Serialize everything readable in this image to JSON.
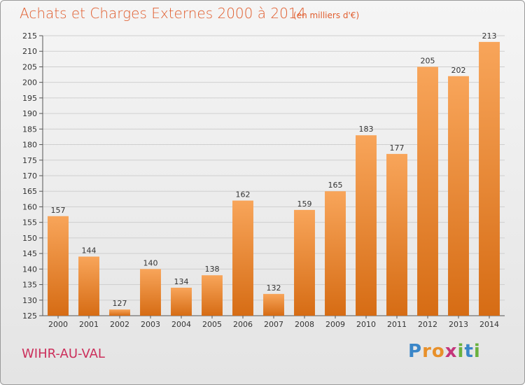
{
  "header": {
    "title": "Achats et Charges Externes 2000 à 2014",
    "subtitle": "(en milliers d'€)"
  },
  "footer": {
    "place": "WIHR-AU-VAL",
    "logo_letters": [
      "P",
      "r",
      "o",
      "x",
      "i",
      "t",
      "i"
    ]
  },
  "colors": {
    "title": "#e05d2e",
    "place": "#cc2f5b",
    "bar_light": "#f8a55a",
    "bar_dark": "#d66c14",
    "grid": "#cfcfcf"
  },
  "chart_data": {
    "type": "bar",
    "title": "Achats et Charges Externes 2000 à 2014",
    "subtitle": "(en milliers d'€)",
    "xlabel": "",
    "ylabel": "",
    "ylim": [
      125,
      215
    ],
    "yticks": [
      125,
      130,
      135,
      140,
      145,
      150,
      155,
      160,
      165,
      170,
      175,
      180,
      185,
      190,
      195,
      200,
      205,
      210,
      215
    ],
    "grid": true,
    "categories": [
      "2000",
      "2001",
      "2002",
      "2003",
      "2004",
      "2005",
      "2006",
      "2007",
      "2008",
      "2009",
      "2010",
      "2011",
      "2012",
      "2013",
      "2014"
    ],
    "values": [
      157,
      144,
      127,
      140,
      134,
      138,
      162,
      132,
      159,
      165,
      183,
      177,
      205,
      202,
      213
    ],
    "data_labels": [
      "157",
      "144",
      "127",
      "140",
      "134",
      "138",
      "162",
      "132",
      "159",
      "165",
      "183",
      "177",
      "205",
      "202",
      "213"
    ]
  }
}
